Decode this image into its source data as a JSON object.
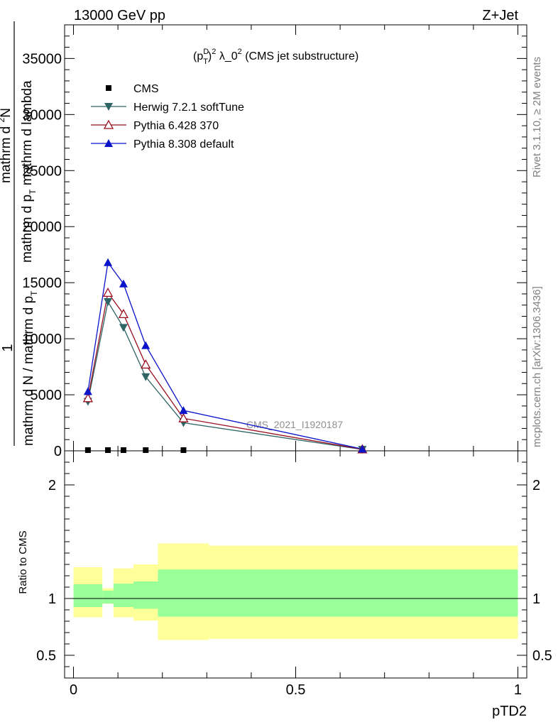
{
  "chart_data": [
    {
      "type": "line",
      "title": "(p_T^D)^2 λ_0^2 (CMS jet substructure)",
      "title_parts": {
        "p": "(p",
        "sup1": "D",
        "sub1": "T",
        "close": ")",
        "sup2": "2",
        "mid": " λ_0",
        "sup3": "2",
        "tail": " (CMS jet substructure)"
      },
      "header_left": "13000 GeV pp",
      "header_right": "Z+Jet",
      "ylabel": "1 / mathrm d N / mathrm d p_T mathrm d^2N / mathrm d p_T mathrm d lambda",
      "ylabel_parts": {
        "one": "1",
        "denominator": "mathrm d N / mathrm d p",
        "denominator_sub": "T",
        "numerator_a": "mathrm d",
        "numerator_sup": "2",
        "numerator_b": "N",
        "numerator_c": "mathrm d p",
        "numerator_sub": "T",
        "numerator_d": " mathrm d lambda"
      },
      "ylim": [
        0,
        38000
      ],
      "xlim": [
        -0.02,
        1.02
      ],
      "y_ticks": [
        0,
        5000,
        10000,
        15000,
        20000,
        25000,
        30000,
        35000
      ],
      "y_tick_labels": [
        "0",
        "5000",
        "10000",
        "15000",
        "20000",
        "25000",
        "30000",
        "35000"
      ],
      "legend_position": "top-left",
      "watermark": "CMS_2021_I1920187",
      "series": [
        {
          "name": "CMS",
          "marker": "square",
          "color": "#000000",
          "x": [
            0.0325,
            0.0775,
            0.1125,
            0.1625,
            0.2475
          ],
          "y": [
            0,
            0,
            0,
            0,
            0
          ]
        },
        {
          "name": "Herwig 7.2.1 softTune",
          "marker": "triangle-down",
          "color": "#2f6565",
          "x": [
            0.0325,
            0.0775,
            0.1125,
            0.1625,
            0.2475,
            0.65
          ],
          "y": [
            4400,
            13300,
            11000,
            6600,
            2500,
            120
          ]
        },
        {
          "name": "Pythia 6.428 370",
          "marker": "triangle-up-open",
          "color": "#990f1f",
          "x": [
            0.0325,
            0.0775,
            0.1125,
            0.1625,
            0.2475,
            0.65
          ],
          "y": [
            4700,
            14100,
            12200,
            7700,
            2900,
            140
          ]
        },
        {
          "name": "Pythia 8.308 default",
          "marker": "triangle-up",
          "color": "#0a14c8",
          "x": [
            0.0325,
            0.0775,
            0.1125,
            0.1625,
            0.2475,
            0.65
          ],
          "y": [
            5300,
            16800,
            14900,
            9400,
            3600,
            160
          ]
        }
      ]
    },
    {
      "type": "area",
      "ylabel": "Ratio to CMS",
      "xlabel": "pTD2",
      "ylim": [
        0.3,
        2.3
      ],
      "xlim": [
        -0.02,
        1.02
      ],
      "x_ticks": [
        0,
        0.5,
        1
      ],
      "x_tick_labels": [
        "0",
        "0.5",
        "1"
      ],
      "y_ticks": [
        0.5,
        1,
        2
      ],
      "y_tick_labels": [
        "0.5",
        "1",
        "2"
      ],
      "reference_line": 1,
      "bins": [
        0,
        0.065,
        0.09,
        0.135,
        0.19,
        0.305,
        1.0
      ],
      "band_outer": {
        "color": "#ffff99",
        "lower": [
          0.835,
          0.955,
          0.835,
          0.805,
          0.635,
          0.645
        ],
        "upper": [
          1.275,
          1.09,
          1.265,
          1.3,
          1.485,
          1.465
        ]
      },
      "band_inner": {
        "color": "#99ff99",
        "lower": [
          0.925,
          0.955,
          0.925,
          0.91,
          0.84,
          0.84
        ],
        "upper": [
          1.125,
          1.07,
          1.13,
          1.15,
          1.255,
          1.255
        ]
      }
    }
  ],
  "side_text": {
    "rivet": "Rivet 3.1.10, ≥ 2M events",
    "mcplots": "mcplots.cern.ch [arXiv:1306.3436]"
  }
}
